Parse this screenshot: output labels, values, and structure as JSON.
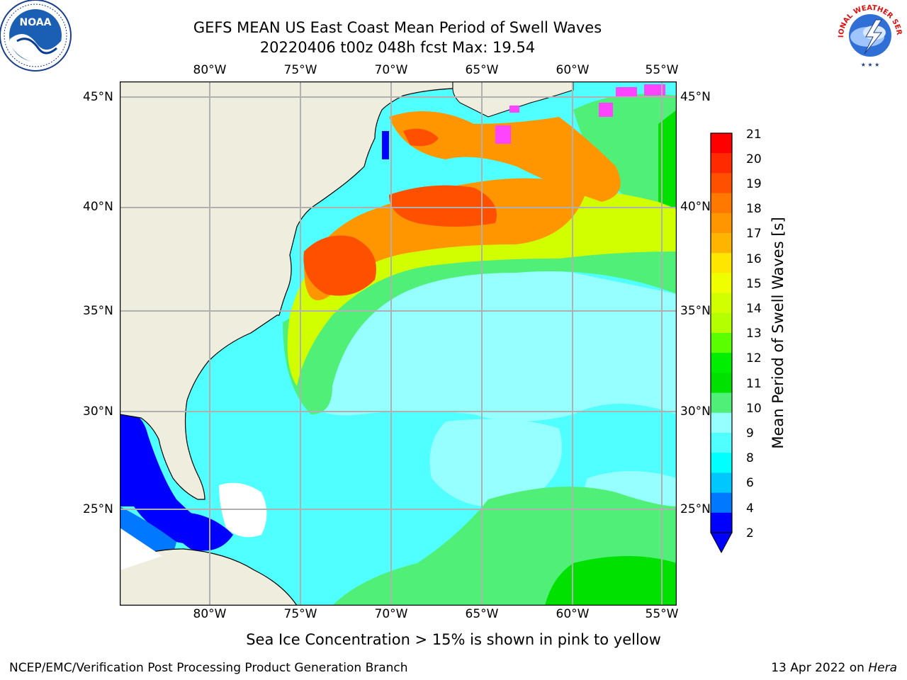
{
  "title_line1": "GEFS MEAN US East Coast Mean Period of Swell Waves",
  "title_line2": "20220406 t00z 048h fcst   Max: 19.54",
  "lon_labels": [
    "80°W",
    "75°W",
    "70°W",
    "65°W",
    "60°W",
    "55°W"
  ],
  "lat_labels": [
    "45°N",
    "40°N",
    "35°N",
    "30°N",
    "25°N"
  ],
  "colorbar": {
    "title": "Mean Period of Swell Waves [s]",
    "ticks": [
      "21",
      "20",
      "19",
      "18",
      "17",
      "16",
      "15",
      "14",
      "13",
      "12",
      "11",
      "10",
      "9",
      "8",
      "6",
      "4",
      "2"
    ],
    "colors_top_to_bottom": [
      "#ff0000",
      "#ff2a00",
      "#ff5000",
      "#ff7800",
      "#ff9600",
      "#ffb400",
      "#ffe600",
      "#f0ff00",
      "#d2ff00",
      "#b4ff00",
      "#5aff00",
      "#00ee00",
      "#00e100",
      "#50f078",
      "#96ffff",
      "#50ffff",
      "#00ffff",
      "#00c8ff",
      "#0078ff",
      "#0000ff"
    ],
    "extend_color": "#0000ff"
  },
  "colors": {
    "land": "#efedde",
    "grid": "#b0b0b0",
    "coast": "#000000",
    "ice": "#ff44ff"
  },
  "note": "Sea Ice Concentration > 15% is shown in pink to yellow",
  "footer_left": "NCEP/EMC/Verification Post Processing Product Generation Branch",
  "footer_date": "13 Apr 2022 on",
  "footer_machine": "Hera",
  "logos": {
    "noaa": "NOAA",
    "nws": "NATIONAL WEATHER SERVICE"
  }
}
